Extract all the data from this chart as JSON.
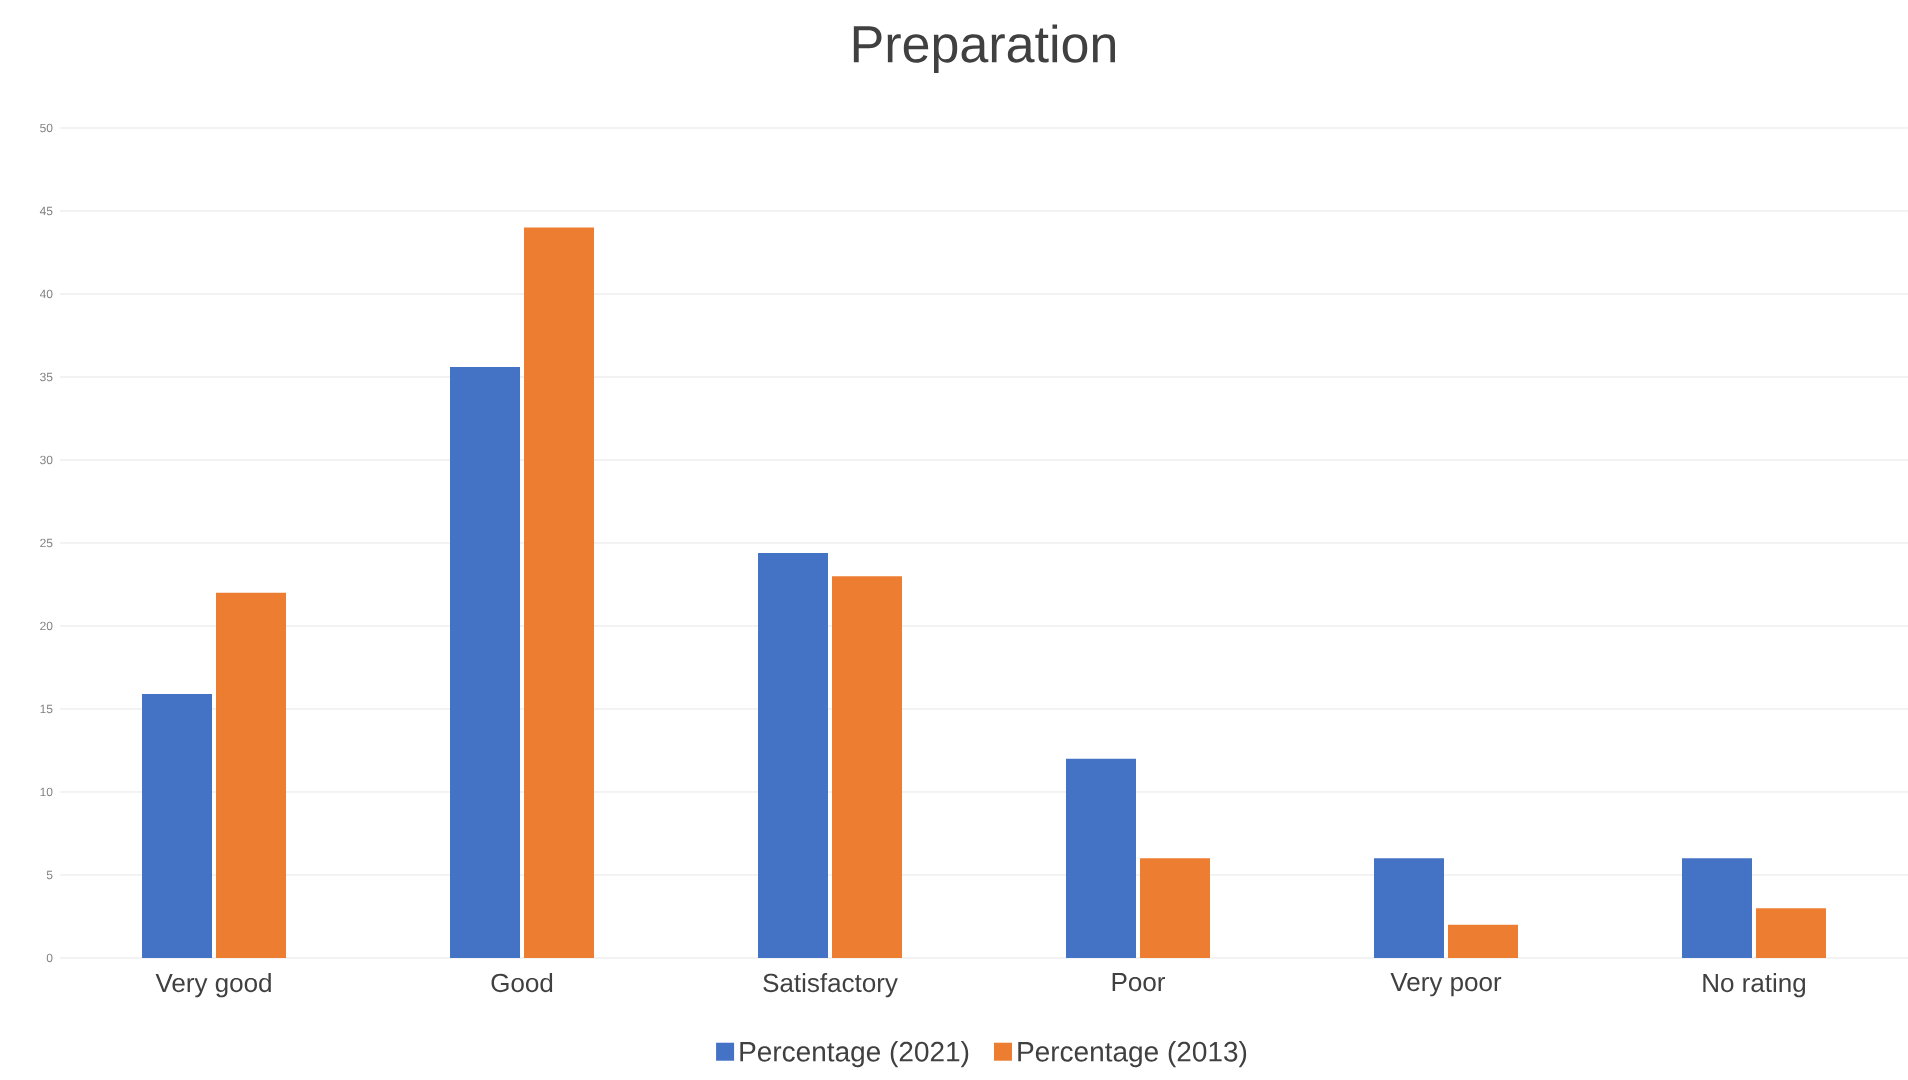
{
  "chart_data": {
    "type": "bar",
    "title": "Preparation",
    "categories": [
      "Very good",
      "Good",
      "Satisfactory",
      "Poor",
      "Very poor",
      "No rating"
    ],
    "series": [
      {
        "name": "Percentage (2021)",
        "color": "#4472c4",
        "values": [
          15.9,
          35.6,
          24.4,
          12,
          6,
          6
        ]
      },
      {
        "name": "Percentage (2013)",
        "color": "#ed7d31",
        "values": [
          22,
          44,
          23,
          6,
          2,
          3
        ]
      }
    ],
    "ylim": [
      0,
      50
    ],
    "yticks": [
      0,
      5,
      10,
      15,
      20,
      25,
      30,
      35,
      40,
      45,
      50
    ],
    "grid": "y",
    "legend": "bottom"
  }
}
